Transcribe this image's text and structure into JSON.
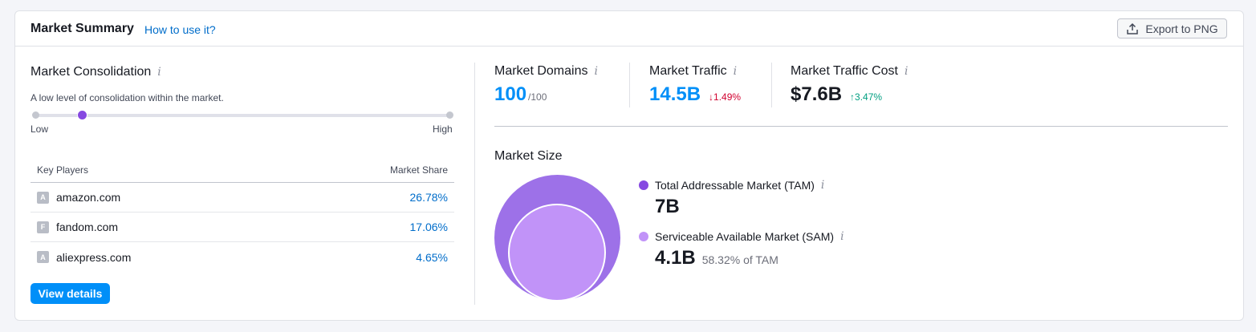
{
  "header": {
    "title": "Market Summary",
    "how_link": "How to use it?",
    "export_label": "Export to PNG"
  },
  "consolidation": {
    "title": "Market Consolidation",
    "description": "A low level of consolidation within the market.",
    "low_label": "Low",
    "high_label": "High",
    "level_fraction": 0.12
  },
  "key_players": {
    "col_player": "Key Players",
    "col_share": "Market Share",
    "rows": [
      {
        "favicon": "A",
        "domain": "amazon.com",
        "share": "26.78%"
      },
      {
        "favicon": "F",
        "domain": "fandom.com",
        "share": "17.06%"
      },
      {
        "favicon": "A",
        "domain": "aliexpress.com",
        "share": "4.65%"
      }
    ]
  },
  "view_details_label": "View details",
  "metrics": {
    "domains": {
      "label": "Market Domains",
      "value": "100",
      "suffix": "/100"
    },
    "traffic": {
      "label": "Market Traffic",
      "value": "14.5B",
      "change": "1.49%",
      "direction": "down"
    },
    "cost": {
      "label": "Market Traffic Cost",
      "value": "$7.6B",
      "change": "3.47%",
      "direction": "up"
    }
  },
  "market_size": {
    "title": "Market Size",
    "tam": {
      "label": "Total Addressable Market (TAM)",
      "value": "7B",
      "color": "#8649e1"
    },
    "sam": {
      "label": "Serviceable Available Market (SAM)",
      "value": "4.1B",
      "sub": "58.32% of TAM",
      "color": "#c193f8"
    }
  },
  "colors": {
    "accent_blue": "#008ff8",
    "link_blue": "#006dca",
    "down_red": "#d1002f",
    "up_green": "#009f81"
  }
}
